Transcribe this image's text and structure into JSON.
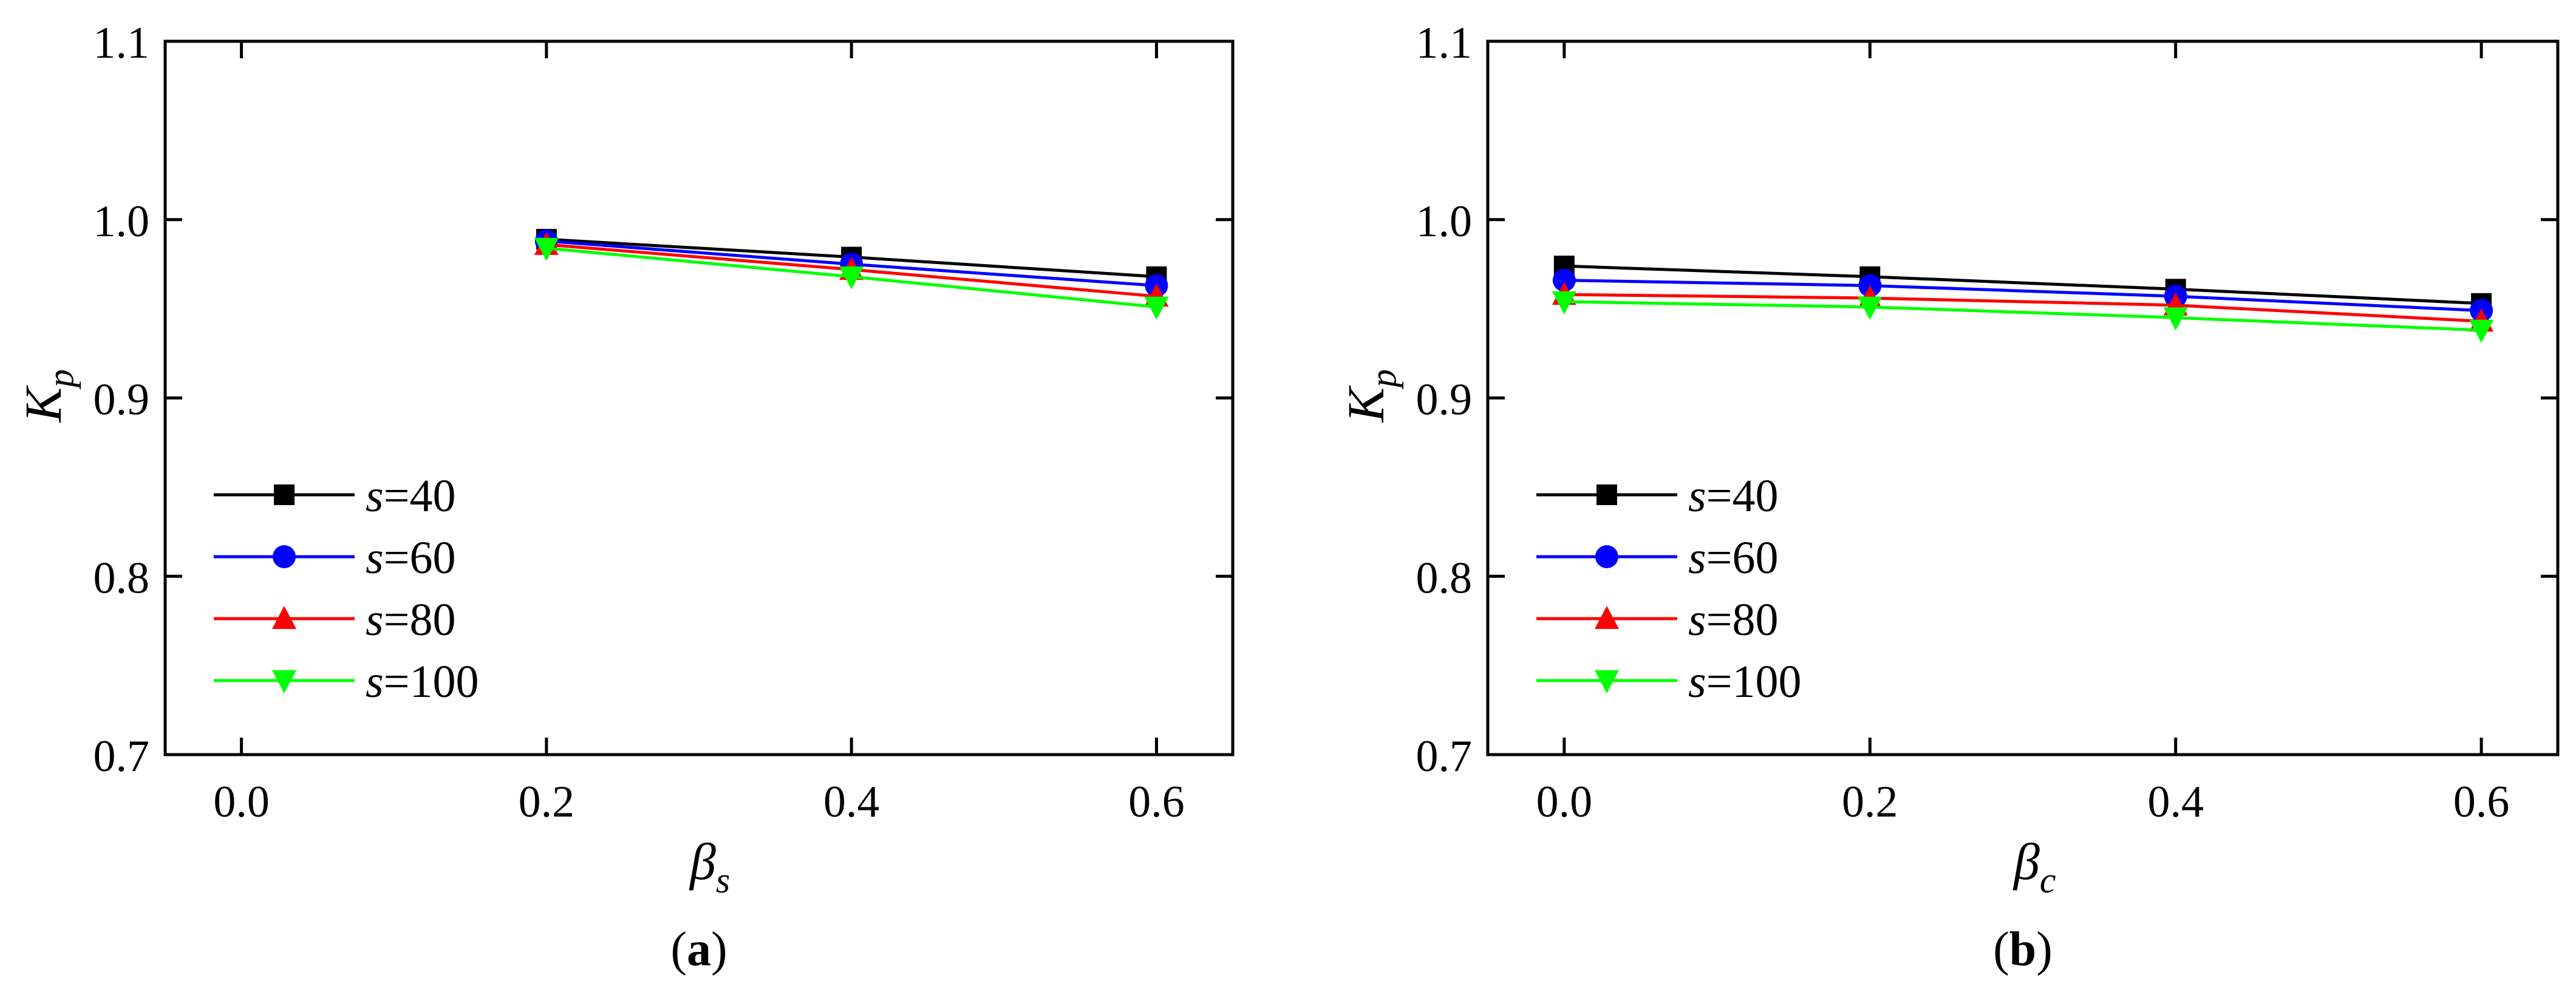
{
  "chart_data": [
    {
      "type": "line",
      "panel_label": "a",
      "xlabel": "β",
      "xlabel_sub": "s",
      "ylabel": "K",
      "ylabel_sub": "p",
      "xlim": [
        -0.05,
        0.65
      ],
      "ylim": [
        0.7,
        1.1
      ],
      "xticks": [
        "0.0",
        "0.2",
        "0.4",
        "0.6"
      ],
      "yticks": [
        "0.7",
        "0.8",
        "0.9",
        "1.0",
        "1.1"
      ],
      "grid": false,
      "legend_position": "bottom-left",
      "x": [
        0.2,
        0.4,
        0.6
      ],
      "series": [
        {
          "name": "s=40",
          "name_var": "s",
          "name_val": "=40",
          "color": "#000000",
          "marker": "square",
          "values": [
            0.989,
            0.979,
            0.968
          ]
        },
        {
          "name": "s=60",
          "name_var": "s",
          "name_val": "=60",
          "color": "#0000ff",
          "marker": "circle",
          "values": [
            0.988,
            0.975,
            0.963
          ]
        },
        {
          "name": "s=80",
          "name_var": "s",
          "name_val": "=80",
          "color": "#ff0000",
          "marker": "triangle-up",
          "values": [
            0.986,
            0.972,
            0.957
          ]
        },
        {
          "name": "s=100",
          "name_var": "s",
          "name_val": "=100",
          "color": "#00ff00",
          "marker": "triangle-down",
          "values": [
            0.984,
            0.968,
            0.951
          ]
        }
      ]
    },
    {
      "type": "line",
      "panel_label": "b",
      "xlabel": "β",
      "xlabel_sub": "c",
      "ylabel": "K",
      "ylabel_sub": "p",
      "xlim": [
        -0.05,
        0.65
      ],
      "ylim": [
        0.7,
        1.1
      ],
      "xticks": [
        "0.0",
        "0.2",
        "0.4",
        "0.6"
      ],
      "yticks": [
        "0.7",
        "0.8",
        "0.9",
        "1.0",
        "1.1"
      ],
      "grid": false,
      "legend_position": "bottom-left",
      "x": [
        0.0,
        0.2,
        0.4,
        0.6
      ],
      "series": [
        {
          "name": "s=40",
          "name_var": "s",
          "name_val": "=40",
          "color": "#000000",
          "marker": "square",
          "values": [
            0.974,
            0.968,
            0.961,
            0.953
          ]
        },
        {
          "name": "s=60",
          "name_var": "s",
          "name_val": "=60",
          "color": "#0000ff",
          "marker": "circle",
          "values": [
            0.966,
            0.963,
            0.957,
            0.949
          ]
        },
        {
          "name": "s=80",
          "name_var": "s",
          "name_val": "=80",
          "color": "#ff0000",
          "marker": "triangle-up",
          "values": [
            0.958,
            0.956,
            0.952,
            0.943
          ]
        },
        {
          "name": "s=100",
          "name_var": "s",
          "name_val": "=100",
          "color": "#00ff00",
          "marker": "triangle-down",
          "values": [
            0.954,
            0.951,
            0.945,
            0.938
          ]
        }
      ]
    }
  ]
}
